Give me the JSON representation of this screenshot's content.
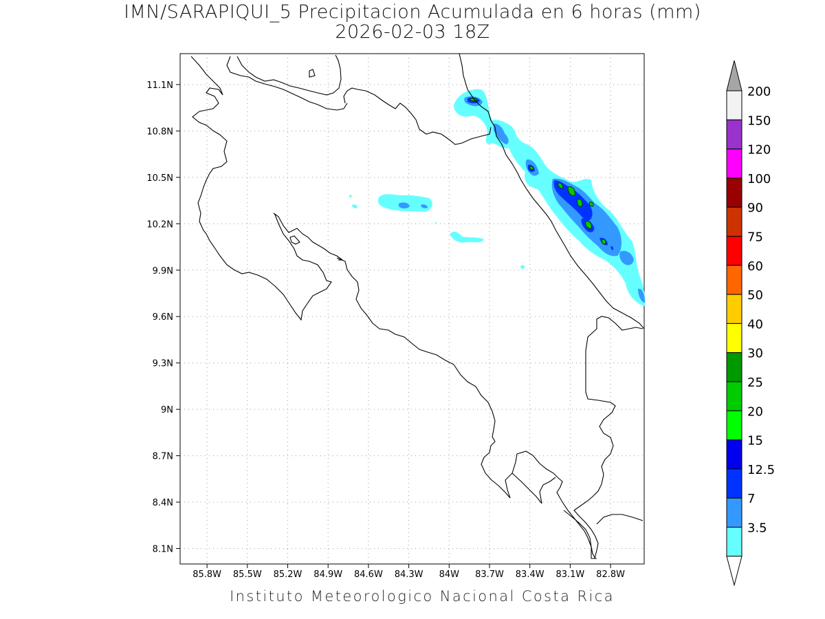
{
  "title": {
    "line1": "IMN/SARAPIQUI_5 Precipitacion Acumulada en 6 horas (mm)",
    "line2": "2026-02-03 18Z"
  },
  "footer": "Instituto Meteorologico Nacional Costa Rica",
  "map": {
    "lon_range": [
      -86.0,
      -82.55
    ],
    "lat_range": [
      8.0,
      11.3
    ],
    "lat_ticks": [
      "11.1N",
      "10.8N",
      "10.5N",
      "10.2N",
      "9.9N",
      "9.6N",
      "9.3N",
      "9N",
      "8.7N",
      "8.4N",
      "8.1N"
    ],
    "lat_tick_values": [
      11.1,
      10.8,
      10.5,
      10.2,
      9.9,
      9.6,
      9.3,
      9.0,
      8.7,
      8.4,
      8.1
    ],
    "lon_ticks": [
      "85.8W",
      "85.5W",
      "85.2W",
      "84.9W",
      "84.6W",
      "84.3W",
      "84W",
      "83.7W",
      "83.4W",
      "83.1W",
      "82.8W"
    ],
    "lon_tick_values": [
      -85.8,
      -85.5,
      -85.2,
      -84.9,
      -84.6,
      -84.3,
      -84.0,
      -83.7,
      -83.4,
      -83.1,
      -82.8
    ],
    "grid": "dotted"
  },
  "colorbar": {
    "labels": [
      "3.5",
      "7",
      "12.5",
      "15",
      "20",
      "25",
      "30",
      "40",
      "50",
      "60",
      "75",
      "90",
      "100",
      "120",
      "150",
      "200"
    ],
    "colors": [
      "#66ffff",
      "#3399ff",
      "#0033ff",
      "#0000ee",
      "#00ff00",
      "#00cc00",
      "#009900",
      "#ffff00",
      "#ffcc00",
      "#ff6600",
      "#ff0000",
      "#cc3300",
      "#990000",
      "#ff00ff",
      "#9933cc",
      "#f2f2f2"
    ],
    "over_color": "#a6a6a6",
    "under_color": "#ffffff"
  },
  "precip_levels_shown": [
    "#66ffff",
    "#3399ff",
    "#0033ff",
    "#00cc00"
  ]
}
